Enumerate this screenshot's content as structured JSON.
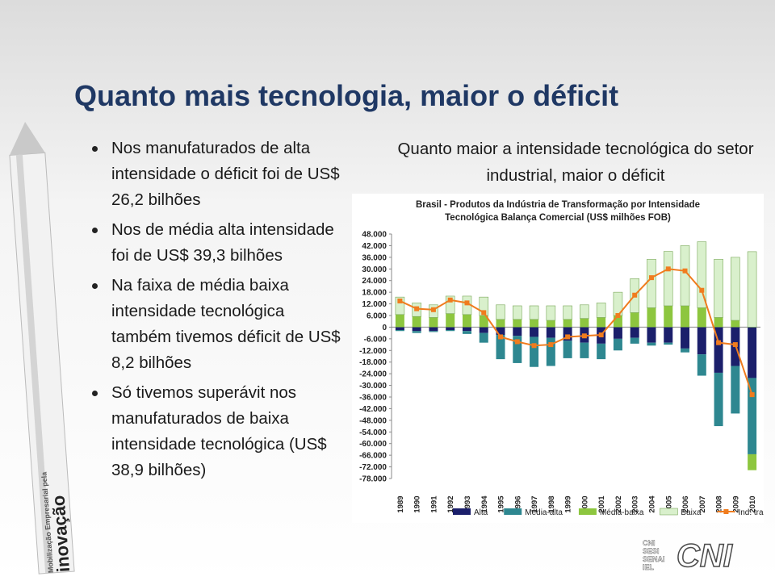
{
  "slide": {
    "title": "Quanto mais tecnologia, maior o déficit",
    "bullets": [
      "Nos manufaturados de alta intensidade o déficit foi de US$ 26,2 bilhões",
      "Nos de média alta intensidade foi de US$ 39,3 bilhões",
      "Na faixa de média baixa intensidade tecnológica também tivemos déficit de US$ 8,2 bilhões",
      "Só tivemos superávit nos manufaturados de baixa intensidade tecnológica (US$ 38,9 bilhões)"
    ],
    "chart_heading": "Quanto maior a intensidade tecnológica do setor industrial, maior o déficit"
  },
  "pencil": {
    "line1": "Mobilização Empresarial pela",
    "line2": "inovação"
  },
  "footer": {
    "small_logos": [
      "CNI",
      "SESI",
      "SENAI",
      "IEL"
    ],
    "logo": "CNI"
  },
  "chart_data": {
    "type": "bar",
    "stacked": true,
    "title": "Brasil - Produtos da Indústria de Transformação por Intensidade Tecnológica Balança Comercial (US$ milhões FOB)",
    "categories": [
      "1989",
      "1990",
      "1991",
      "1992",
      "1993",
      "1994",
      "1995",
      "1996",
      "1997",
      "1998",
      "1999",
      "2000",
      "2001",
      "2002",
      "2003",
      "2004",
      "2005",
      "2006",
      "2007",
      "2008",
      "2009",
      "2010"
    ],
    "series": [
      {
        "name": "Alta",
        "color": "#1b1f6b",
        "values": [
          -1500,
          -2000,
          -2000,
          -1500,
          -2000,
          -3000,
          -4000,
          -4500,
          -5000,
          -5500,
          -7000,
          -8000,
          -8500,
          -6000,
          -5500,
          -8000,
          -8000,
          -11000,
          -14000,
          -23500,
          -20000,
          -26200
        ]
      },
      {
        "name": "Média-alta",
        "color": "#2e8790",
        "values": [
          -500,
          -1000,
          -500,
          -500,
          -1500,
          -5000,
          -12500,
          -14000,
          -15500,
          -14500,
          -9000,
          -8000,
          -8000,
          -6000,
          -3000,
          -1500,
          -1000,
          -2000,
          -11000,
          -27500,
          -24500,
          -39300
        ]
      },
      {
        "name": "Média-baixa",
        "color": "#8dc63f",
        "values": [
          6500,
          5500,
          5000,
          7000,
          6500,
          6000,
          4000,
          4000,
          4000,
          3500,
          4000,
          4500,
          5000,
          6000,
          7500,
          10000,
          11000,
          11000,
          10000,
          5000,
          3500,
          -8200
        ]
      },
      {
        "name": "Baixa",
        "color": "#d9f0cc",
        "values": [
          9000,
          7000,
          6500,
          9000,
          9500,
          9500,
          7500,
          7000,
          7000,
          7500,
          7000,
          7000,
          7500,
          12000,
          17500,
          25000,
          28000,
          31000,
          34000,
          30000,
          32500,
          38900
        ]
      },
      {
        "name": "Ind. transform.",
        "type": "line",
        "color": "#f07c1e",
        "values": [
          13500,
          9500,
          9000,
          14000,
          12500,
          7500,
          -5000,
          -7500,
          -9500,
          -9000,
          -5000,
          -4500,
          -4000,
          6000,
          16500,
          25500,
          30000,
          29000,
          19000,
          -8000,
          -9000,
          -34800
        ]
      }
    ],
    "ylim": [
      -78000,
      48000
    ],
    "yticks": [
      {
        "value": 48000,
        "label": "48.000"
      },
      {
        "value": 42000,
        "label": "42.000"
      },
      {
        "value": 36000,
        "label": "36.000"
      },
      {
        "value": 30000,
        "label": "30.000"
      },
      {
        "value": 24000,
        "label": "24.000"
      },
      {
        "value": 18000,
        "label": "18.000"
      },
      {
        "value": 12000,
        "label": "12.000"
      },
      {
        "value": 6000,
        "label": "6.000"
      },
      0,
      {
        "value": -6000,
        "label": "-6.000"
      },
      {
        "value": -12000,
        "label": "-12.000"
      },
      {
        "value": -18000,
        "label": "-18.000"
      },
      {
        "value": -24000,
        "label": "-24.000"
      },
      {
        "value": -30000,
        "label": "-30.000"
      },
      {
        "value": -36000,
        "label": "-36.000"
      },
      {
        "value": -42000,
        "label": "-42.000"
      },
      {
        "value": -48000,
        "label": "-48.000"
      },
      {
        "value": -54000,
        "label": "-54.000"
      },
      {
        "value": -60000,
        "label": "-60.000"
      },
      {
        "value": -66000,
        "label": "-66.000"
      },
      {
        "value": -72000,
        "label": "-72.000"
      },
      {
        "value": -78000,
        "label": "-78.000"
      }
    ],
    "legend": "bottom"
  }
}
